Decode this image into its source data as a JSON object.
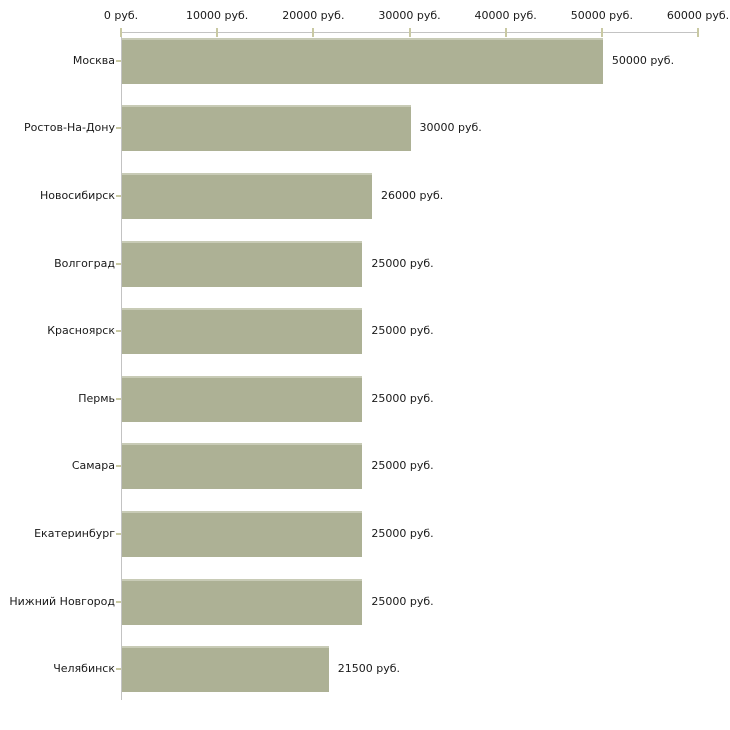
{
  "chart_data": {
    "type": "bar",
    "orientation": "horizontal",
    "title": "",
    "xlabel": "",
    "ylabel": "",
    "categories": [
      "Москва",
      "Ростов-На-Дону",
      "Новосибирск",
      "Волгоград",
      "Красноярск",
      "Пермь",
      "Самара",
      "Екатеринбург",
      "Нижний Новгород",
      "Челябинск"
    ],
    "values": [
      50000,
      30000,
      26000,
      25000,
      25000,
      25000,
      25000,
      25000,
      25000,
      21500
    ],
    "value_labels": [
      "50000 руб.",
      "30000 руб.",
      "26000 руб.",
      "25000 руб.",
      "25000 руб.",
      "25000 руб.",
      "25000 руб.",
      "25000 руб.",
      "25000 руб.",
      "21500 руб."
    ],
    "xlim": [
      0,
      60000
    ],
    "x_tick_values": [
      0,
      10000,
      20000,
      30000,
      40000,
      50000,
      60000
    ],
    "x_tick_labels": [
      "0 руб.",
      "10000 руб.",
      "20000 руб.",
      "30000 руб.",
      "40000 руб.",
      "50000 руб.",
      "60000 руб."
    ],
    "grid": false,
    "legend": "none",
    "colors": {
      "bar_fill": "#adb195",
      "bar_top_edge": "#c8cbb6",
      "axis_line": "#c3c3c3",
      "tick_mark": "#c9c9a3",
      "text": "#1a1a1a",
      "background": "#ffffff"
    }
  }
}
